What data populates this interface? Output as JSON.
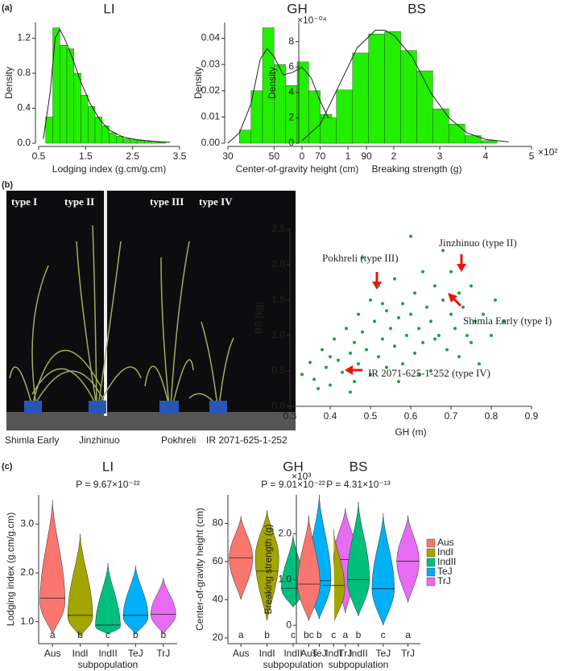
{
  "panel_labels": [
    "(a)",
    "(b)",
    "(c)"
  ],
  "photo": {
    "type_labels": [
      "type I",
      "type II",
      "type III",
      "type IV"
    ],
    "captions": [
      "Shimla Early",
      "Jinzhinuo",
      "Pokhreli",
      "IR 2071-625-1-252"
    ]
  },
  "chart_data": [
    {
      "type": "histogram",
      "title": "LI",
      "xlabel": "Lodging index (g.cm/g.cm)",
      "ylabel": "Density",
      "color": "#22ee00",
      "bins": [
        0.65,
        0.8,
        0.95,
        1.1,
        1.25,
        1.4,
        1.55,
        1.7,
        1.85,
        2.0,
        2.15,
        2.3,
        2.45,
        2.6,
        2.75,
        2.9,
        3.05,
        3.2
      ],
      "values": [
        0.3,
        1.32,
        1.12,
        1.08,
        0.8,
        0.55,
        0.42,
        0.3,
        0.2,
        0.12,
        0.08,
        0.05,
        0.04,
        0.03,
        0.02,
        0.01,
        0.01
      ],
      "curve": {
        "x": [
          0.6,
          0.75,
          0.85,
          0.95,
          1.05,
          1.2,
          1.4,
          1.6,
          1.8,
          2.0,
          2.3,
          2.6,
          3.0,
          3.3
        ],
        "y": [
          0.05,
          0.6,
          1.2,
          1.3,
          1.2,
          1.0,
          0.7,
          0.45,
          0.27,
          0.15,
          0.07,
          0.04,
          0.02,
          0.01
        ]
      },
      "xlim": [
        0.5,
        3.5
      ],
      "xticks": [
        0.5,
        1.5,
        2.5,
        3.5
      ],
      "ylim": [
        0,
        1.38
      ],
      "yticks": [
        {
          "value": 0,
          "label": "0.0"
        },
        0.4,
        0.8,
        1.2
      ]
    },
    {
      "type": "histogram",
      "title": "GH",
      "xlabel": "Center-of-gravity height (cm)",
      "ylabel": "Density",
      "color": "#22ee00",
      "bins": [
        35,
        40,
        45,
        50,
        55,
        60,
        65,
        70,
        75,
        80,
        85
      ],
      "values": [
        0.005,
        0.02,
        0.044,
        0.03,
        0.022,
        0.031,
        0.02,
        0.011,
        0.006,
        0.002
      ],
      "curve": {
        "x": [
          30,
          35,
          40,
          44,
          47,
          50,
          54,
          58,
          62,
          66,
          70,
          75,
          80,
          85,
          90
        ],
        "y": [
          0.0,
          0.004,
          0.015,
          0.032,
          0.036,
          0.033,
          0.026,
          0.027,
          0.029,
          0.025,
          0.016,
          0.007,
          0.003,
          0.001,
          0.0
        ]
      },
      "xlim": [
        30,
        90
      ],
      "xticks": [
        30,
        50,
        70,
        90
      ],
      "ylim": [
        0,
        0.046
      ],
      "yticks": [
        {
          "value": 0,
          "label": "0.00"
        },
        0.01,
        0.02,
        0.03,
        0.04
      ]
    },
    {
      "type": "histogram",
      "title": "BS",
      "xlabel": "Breaking strength (g)",
      "ylabel": "Density",
      "color": "#22ee00",
      "y_multiplier": "×10⁻⁰⁴",
      "x_multiplier": "×10²",
      "bins": [
        0.4,
        0.75,
        1.1,
        1.45,
        1.8,
        2.15,
        2.5,
        2.85,
        3.2,
        3.55,
        3.9,
        4.25
      ],
      "values": [
        2.0,
        4.2,
        7.1,
        8.6,
        8.8,
        7.3,
        5.7,
        2.7,
        1.5,
        0.6,
        0.2
      ],
      "curve": {
        "x": [
          0,
          0.4,
          0.8,
          1.2,
          1.6,
          1.8,
          2.0,
          2.4,
          2.8,
          3.2,
          3.6,
          4.0,
          4.5
        ],
        "y": [
          0.2,
          1.5,
          4.5,
          7.5,
          8.9,
          8.9,
          8.5,
          6.8,
          4.0,
          2.0,
          0.8,
          0.3,
          0.1
        ]
      },
      "xlim": [
        0,
        5
      ],
      "xticks": [
        0,
        1,
        2,
        3,
        4,
        5
      ],
      "ylim": [
        0,
        9.5
      ],
      "yticks": [
        0,
        2,
        4,
        6,
        8
      ]
    },
    {
      "type": "scatter",
      "xlabel": "GH (m)",
      "ylabel": "BS (kg)",
      "color": "#1aa34a",
      "annotations": [
        "Jinzhinuo (type II)",
        "Pokhreli (type III)",
        "Shimla Early (type I)",
        "IR 2071-625-1-252 (type IV)"
      ],
      "x": [
        0.33,
        0.35,
        0.36,
        0.38,
        0.39,
        0.4,
        0.41,
        0.42,
        0.43,
        0.44,
        0.45,
        0.45,
        0.46,
        0.47,
        0.47,
        0.48,
        0.48,
        0.49,
        0.5,
        0.5,
        0.51,
        0.52,
        0.52,
        0.53,
        0.54,
        0.54,
        0.55,
        0.56,
        0.56,
        0.57,
        0.58,
        0.58,
        0.59,
        0.6,
        0.6,
        0.61,
        0.61,
        0.62,
        0.63,
        0.63,
        0.64,
        0.65,
        0.65,
        0.66,
        0.67,
        0.68,
        0.68,
        0.69,
        0.7,
        0.7,
        0.71,
        0.72,
        0.72,
        0.73,
        0.74,
        0.75,
        0.76,
        0.77,
        0.78,
        0.8,
        0.81,
        0.83,
        0.37,
        0.4,
        0.46,
        0.53,
        0.57,
        0.62,
        0.66,
        0.75
      ],
      "values": [
        0.45,
        0.62,
        0.38,
        0.8,
        0.55,
        0.3,
        0.95,
        0.65,
        0.48,
        1.1,
        0.75,
        0.2,
        0.9,
        1.3,
        0.6,
        1.05,
        2.1,
        0.8,
        1.5,
        0.45,
        1.2,
        0.7,
        1.7,
        0.95,
        1.35,
        0.55,
        1.1,
        1.8,
        0.85,
        1.25,
        0.6,
        1.45,
        1.0,
        2.4,
        1.3,
        0.75,
        1.6,
        1.1,
        1.9,
        0.9,
        1.4,
        1.2,
        0.5,
        1.7,
        1.0,
        1.5,
        2.2,
        0.8,
        1.3,
        1.9,
        1.1,
        1.6,
        0.7,
        1.4,
        1.0,
        1.7,
        1.2,
        0.6,
        1.3,
        1.0,
        1.5,
        1.2,
        0.25,
        0.7,
        0.35,
        1.45,
        0.35,
        0.45,
        0.95,
        0.9
      ],
      "xlim": [
        0.3,
        0.9
      ],
      "xticks": [
        0.3,
        0.4,
        0.5,
        0.6,
        0.7,
        0.8,
        0.9
      ],
      "ylim": [
        0,
        2.5
      ],
      "yticks": [
        {
          "value": 0,
          "label": "0.0"
        },
        0.5,
        {
          "value": 1,
          "label": "1.0"
        },
        1.5,
        {
          "value": 2,
          "label": "2.0"
        },
        2.5
      ]
    },
    {
      "type": "violin",
      "title": "LI",
      "p_value": "P = 9.67×10⁻²²",
      "xlabel": "subpopulation",
      "ylabel": "Lodging index (g.cm/g.cm)",
      "categories": [
        "Aus",
        "IndI",
        "IndII",
        "TeJ",
        "TrJ"
      ],
      "colors": [
        "#f8766d",
        "#a3a500",
        "#00bf7d",
        "#00b0f6",
        "#e76bf3"
      ],
      "min": [
        0.75,
        0.7,
        0.75,
        0.75,
        0.75
      ],
      "max": [
        3.5,
        2.8,
        2.2,
        2.15,
        1.9
      ],
      "peak": [
        1.4,
        1.1,
        0.9,
        1.1,
        1.15
      ],
      "median": [
        1.48,
        1.13,
        0.93,
        1.13,
        1.15
      ],
      "group_letters": [
        "a",
        "b",
        "c",
        "b",
        "b"
      ],
      "ylim": [
        0.55,
        3.6
      ],
      "yticks": [
        {
          "value": 1,
          "label": "1.0"
        },
        {
          "value": 2,
          "label": "2.0"
        },
        {
          "value": 3,
          "label": "3.0"
        }
      ]
    },
    {
      "type": "violin",
      "title": "GH",
      "p_value": "P = 9.01×10⁻²²",
      "xlabel": "subpopulation",
      "ylabel": "Center-of-gravity height (cm)",
      "categories": [
        "Aus",
        "IndI",
        "IndII",
        "TeJ",
        "TrJ"
      ],
      "colors": [
        "#f8766d",
        "#a3a500",
        "#00bf7d",
        "#00b0f6",
        "#e76bf3"
      ],
      "min": [
        40,
        29,
        36,
        30,
        33
      ],
      "max": [
        84,
        87,
        74,
        95,
        88
      ],
      "peak": [
        62,
        62,
        46,
        50,
        62
      ],
      "median": [
        62,
        55,
        46,
        50,
        61
      ],
      "group_letters": [
        "a",
        "b",
        "c",
        "b",
        "a"
      ],
      "ylim": [
        17,
        95
      ],
      "yticks": [
        20,
        40,
        60,
        80
      ]
    },
    {
      "type": "violin",
      "title": "BS",
      "p_value": "P = 4.31×10⁻¹³",
      "xlabel": "subpopulation",
      "ylabel": "Breaking strength (g)",
      "y_multiplier": "×10³",
      "legend": "right",
      "categories": [
        "Aus",
        "IndI",
        "IndII",
        "TeJ",
        "TrJ"
      ],
      "colors": [
        "#f8766d",
        "#a3a500",
        "#00bf7d",
        "#00b0f6",
        "#e76bf3"
      ],
      "min": [
        0.1,
        0.05,
        0.2,
        0.0,
        0.5
      ],
      "max": [
        2.4,
        2.1,
        2.7,
        2.45,
        2.4
      ],
      "peak": [
        0.9,
        0.8,
        1.0,
        0.8,
        1.4
      ],
      "median": [
        0.9,
        0.87,
        1.0,
        0.8,
        1.4
      ],
      "group_letters": [
        "bc",
        "c",
        "b",
        "c",
        "a"
      ],
      "ylim": [
        -0.4,
        2.85
      ],
      "yticks": [
        0,
        {
          "value": 1,
          "label": "1.0"
        },
        {
          "value": 2,
          "label": "2.0"
        }
      ]
    }
  ]
}
